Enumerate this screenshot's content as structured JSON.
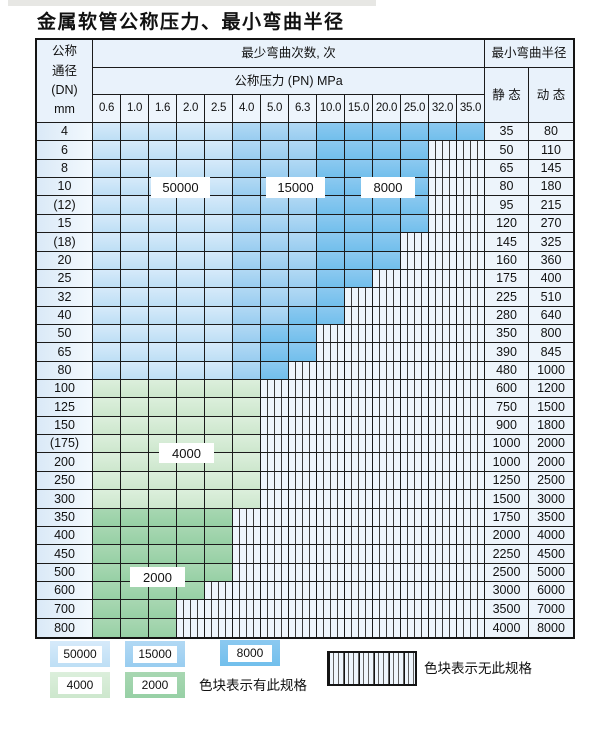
{
  "page": {
    "title": "金属软管公称压力、最小弯曲半径"
  },
  "table": {
    "corner_lines": [
      "公称",
      "通径",
      "(DN)",
      "mm"
    ],
    "bend_header": "最少弯曲次数, 次",
    "pressure_header": "公称压力 (PN) MPa",
    "radius_header": "最小弯曲半径",
    "static_label": "静 态",
    "dynamic_label": "动 态"
  },
  "overlay_labels": [
    {
      "id": "l50000",
      "text": "50000"
    },
    {
      "id": "l15000",
      "text": "15000"
    },
    {
      "id": "l8000",
      "text": "8000"
    },
    {
      "id": "l4000",
      "text": "4000"
    },
    {
      "id": "l2000",
      "text": "2000"
    }
  ],
  "legend": {
    "swatches": [
      {
        "id": "s50000",
        "label": "50000",
        "fill": "b1"
      },
      {
        "id": "s15000",
        "label": "15000",
        "fill": "b2"
      },
      {
        "id": "s8000",
        "label": "8000",
        "fill": "b3"
      },
      {
        "id": "s4000",
        "label": "4000",
        "fill": "g1"
      },
      {
        "id": "s2000",
        "label": "2000",
        "fill": "g2"
      }
    ],
    "has_spec_text": "色块表示有此规格",
    "no_spec_text": "色块表示无此规格"
  },
  "colors": {
    "blue_50000": "#c9e3f6",
    "blue_15000": "#a5d3f1",
    "blue_8000": "#7cc3ed",
    "green_4000": "#d4ebd4",
    "green_2000": "#9dd2aa",
    "hatch_bg": "#eef5fc",
    "grid_line": "#1b1b1b",
    "header_bg": "#e9f2fb"
  },
  "chart_data": {
    "type": "table",
    "title": "金属软管公称压力、最小弯曲半径",
    "pressure_columns_MPa": [
      "0.6",
      "1.0",
      "1.6",
      "2.0",
      "2.5",
      "4.0",
      "5.0",
      "6.3",
      "10.0",
      "15.0",
      "20.0",
      "25.0",
      "32.0",
      "35.0"
    ],
    "fill_legend": {
      "b1": "50000次",
      "b2": "15000次",
      "b3": "8000次",
      "g1": "4000次",
      "g2": "2000次",
      "x": "无此规格"
    },
    "radius_columns": [
      "静态",
      "动态"
    ],
    "rows": [
      {
        "dn": "4",
        "static": "35",
        "dynamic": "80",
        "cells": [
          "b1",
          "b1",
          "b1",
          "b1",
          "b1",
          "b2",
          "b2",
          "b2",
          "b3",
          "b3",
          "b3",
          "b3",
          "b3",
          "b3"
        ]
      },
      {
        "dn": "6",
        "static": "50",
        "dynamic": "110",
        "cells": [
          "b1",
          "b1",
          "b1",
          "b1",
          "b1",
          "b2",
          "b2",
          "b2",
          "b3",
          "b3",
          "b3",
          "b3",
          "x",
          "x"
        ]
      },
      {
        "dn": "8",
        "static": "65",
        "dynamic": "145",
        "cells": [
          "b1",
          "b1",
          "b1",
          "b1",
          "b1",
          "b2",
          "b2",
          "b2",
          "b3",
          "b3",
          "b3",
          "b3",
          "x",
          "x"
        ]
      },
      {
        "dn": "10",
        "static": "80",
        "dynamic": "180",
        "cells": [
          "b1",
          "b1",
          "b1",
          "b1",
          "b1",
          "b2",
          "b2",
          "b2",
          "b3",
          "b3",
          "b3",
          "b3",
          "x",
          "x"
        ]
      },
      {
        "dn": "(12)",
        "static": "95",
        "dynamic": "215",
        "cells": [
          "b1",
          "b1",
          "b1",
          "b1",
          "b1",
          "b2",
          "b2",
          "b2",
          "b3",
          "b3",
          "b3",
          "b3",
          "x",
          "x"
        ]
      },
      {
        "dn": "15",
        "static": "120",
        "dynamic": "270",
        "cells": [
          "b1",
          "b1",
          "b1",
          "b1",
          "b1",
          "b2",
          "b2",
          "b2",
          "b3",
          "b3",
          "b3",
          "b3",
          "x",
          "x"
        ]
      },
      {
        "dn": "(18)",
        "static": "145",
        "dynamic": "325",
        "cells": [
          "b1",
          "b1",
          "b1",
          "b1",
          "b1",
          "b2",
          "b2",
          "b2",
          "b3",
          "b3",
          "b3",
          "x",
          "x",
          "x"
        ]
      },
      {
        "dn": "20",
        "static": "160",
        "dynamic": "360",
        "cells": [
          "b1",
          "b1",
          "b1",
          "b1",
          "b1",
          "b2",
          "b2",
          "b2",
          "b3",
          "b3",
          "b3",
          "x",
          "x",
          "x"
        ]
      },
      {
        "dn": "25",
        "static": "175",
        "dynamic": "400",
        "cells": [
          "b1",
          "b1",
          "b1",
          "b1",
          "b1",
          "b2",
          "b2",
          "b2",
          "b3",
          "b3",
          "x",
          "x",
          "x",
          "x"
        ]
      },
      {
        "dn": "32",
        "static": "225",
        "dynamic": "510",
        "cells": [
          "b1",
          "b1",
          "b1",
          "b1",
          "b1",
          "b2",
          "b2",
          "b2",
          "b3",
          "x",
          "x",
          "x",
          "x",
          "x"
        ]
      },
      {
        "dn": "40",
        "static": "280",
        "dynamic": "640",
        "cells": [
          "b1",
          "b1",
          "b1",
          "b1",
          "b1",
          "b2",
          "b2",
          "b3",
          "b3",
          "x",
          "x",
          "x",
          "x",
          "x"
        ]
      },
      {
        "dn": "50",
        "static": "350",
        "dynamic": "800",
        "cells": [
          "b1",
          "b1",
          "b1",
          "b1",
          "b1",
          "b2",
          "b3",
          "b3",
          "x",
          "x",
          "x",
          "x",
          "x",
          "x"
        ]
      },
      {
        "dn": "65",
        "static": "390",
        "dynamic": "845",
        "cells": [
          "b1",
          "b1",
          "b1",
          "b1",
          "b1",
          "b2",
          "b3",
          "b3",
          "x",
          "x",
          "x",
          "x",
          "x",
          "x"
        ]
      },
      {
        "dn": "80",
        "static": "480",
        "dynamic": "1000",
        "cells": [
          "b1",
          "b1",
          "b1",
          "b1",
          "b1",
          "b2",
          "b3",
          "x",
          "x",
          "x",
          "x",
          "x",
          "x",
          "x"
        ]
      },
      {
        "dn": "100",
        "static": "600",
        "dynamic": "1200",
        "cells": [
          "g1",
          "g1",
          "g1",
          "g1",
          "g1",
          "g1",
          "x",
          "x",
          "x",
          "x",
          "x",
          "x",
          "x",
          "x"
        ]
      },
      {
        "dn": "125",
        "static": "750",
        "dynamic": "1500",
        "cells": [
          "g1",
          "g1",
          "g1",
          "g1",
          "g1",
          "g1",
          "x",
          "x",
          "x",
          "x",
          "x",
          "x",
          "x",
          "x"
        ]
      },
      {
        "dn": "150",
        "static": "900",
        "dynamic": "1800",
        "cells": [
          "g1",
          "g1",
          "g1",
          "g1",
          "g1",
          "g1",
          "x",
          "x",
          "x",
          "x",
          "x",
          "x",
          "x",
          "x"
        ]
      },
      {
        "dn": "(175)",
        "static": "1000",
        "dynamic": "2000",
        "cells": [
          "g1",
          "g1",
          "g1",
          "g1",
          "g1",
          "g1",
          "x",
          "x",
          "x",
          "x",
          "x",
          "x",
          "x",
          "x"
        ]
      },
      {
        "dn": "200",
        "static": "1000",
        "dynamic": "2000",
        "cells": [
          "g1",
          "g1",
          "g1",
          "g1",
          "g1",
          "g1",
          "x",
          "x",
          "x",
          "x",
          "x",
          "x",
          "x",
          "x"
        ]
      },
      {
        "dn": "250",
        "static": "1250",
        "dynamic": "2500",
        "cells": [
          "g1",
          "g1",
          "g1",
          "g1",
          "g1",
          "g1",
          "x",
          "x",
          "x",
          "x",
          "x",
          "x",
          "x",
          "x"
        ]
      },
      {
        "dn": "300",
        "static": "1500",
        "dynamic": "3000",
        "cells": [
          "g1",
          "g1",
          "g1",
          "g1",
          "g1",
          "g1",
          "x",
          "x",
          "x",
          "x",
          "x",
          "x",
          "x",
          "x"
        ]
      },
      {
        "dn": "350",
        "static": "1750",
        "dynamic": "3500",
        "cells": [
          "g2",
          "g2",
          "g2",
          "g2",
          "g2",
          "x",
          "x",
          "x",
          "x",
          "x",
          "x",
          "x",
          "x",
          "x"
        ]
      },
      {
        "dn": "400",
        "static": "2000",
        "dynamic": "4000",
        "cells": [
          "g2",
          "g2",
          "g2",
          "g2",
          "g2",
          "x",
          "x",
          "x",
          "x",
          "x",
          "x",
          "x",
          "x",
          "x"
        ]
      },
      {
        "dn": "450",
        "static": "2250",
        "dynamic": "4500",
        "cells": [
          "g2",
          "g2",
          "g2",
          "g2",
          "g2",
          "x",
          "x",
          "x",
          "x",
          "x",
          "x",
          "x",
          "x",
          "x"
        ]
      },
      {
        "dn": "500",
        "static": "2500",
        "dynamic": "5000",
        "cells": [
          "g2",
          "g2",
          "g2",
          "g2",
          "g2",
          "x",
          "x",
          "x",
          "x",
          "x",
          "x",
          "x",
          "x",
          "x"
        ]
      },
      {
        "dn": "600",
        "static": "3000",
        "dynamic": "6000",
        "cells": [
          "g2",
          "g2",
          "g2",
          "g2",
          "x",
          "x",
          "x",
          "x",
          "x",
          "x",
          "x",
          "x",
          "x",
          "x"
        ]
      },
      {
        "dn": "700",
        "static": "3500",
        "dynamic": "7000",
        "cells": [
          "g2",
          "g2",
          "g2",
          "x",
          "x",
          "x",
          "x",
          "x",
          "x",
          "x",
          "x",
          "x",
          "x",
          "x"
        ]
      },
      {
        "dn": "800",
        "static": "4000",
        "dynamic": "8000",
        "cells": [
          "g2",
          "g2",
          "g2",
          "x",
          "x",
          "x",
          "x",
          "x",
          "x",
          "x",
          "x",
          "x",
          "x",
          "x"
        ]
      }
    ]
  }
}
